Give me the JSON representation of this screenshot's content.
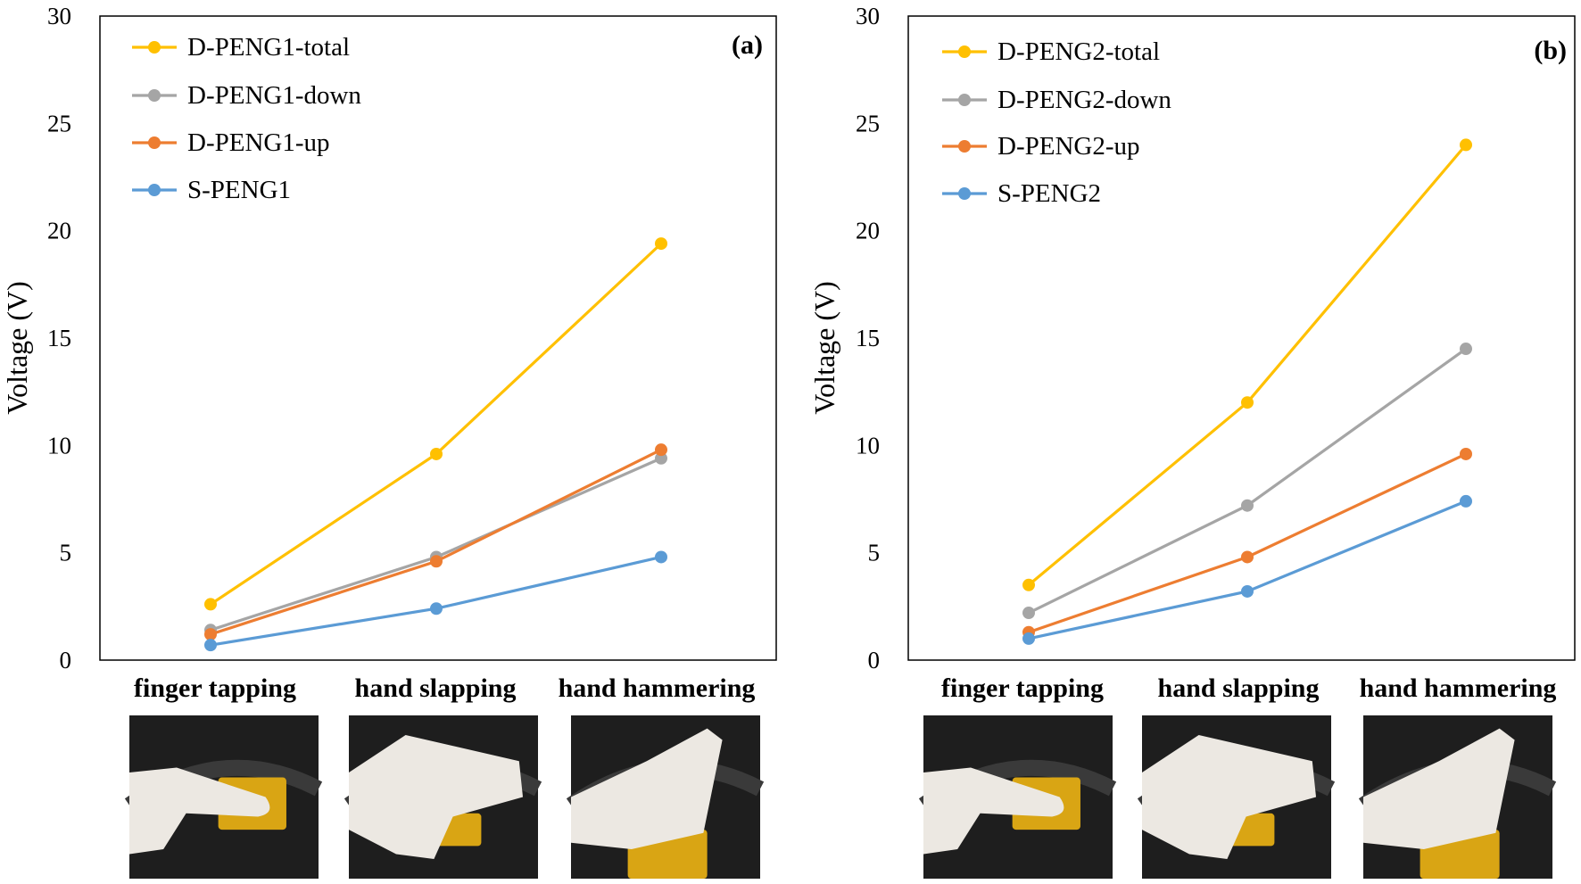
{
  "chart_data": [
    {
      "type": "line",
      "tag": "(a)",
      "categories": [
        "finger tapping",
        "hand slapping",
        "hand hammering"
      ],
      "ylabel": "Voltage (V)",
      "ylim": [
        0,
        30
      ],
      "yticks": [
        0,
        5,
        10,
        15,
        20,
        25,
        30
      ],
      "legend_position": "top-left",
      "grid": false,
      "series": [
        {
          "name": "D-PENG1-total",
          "color": "#FFC000",
          "values": [
            2.6,
            9.6,
            19.4
          ]
        },
        {
          "name": "D-PENG1-down",
          "color": "#A5A5A5",
          "values": [
            1.4,
            4.8,
            9.4
          ]
        },
        {
          "name": "D-PENG1-up",
          "color": "#ED7D31",
          "values": [
            1.2,
            4.6,
            9.8
          ]
        },
        {
          "name": "S-PENG1",
          "color": "#5B9BD5",
          "values": [
            0.7,
            2.4,
            4.8
          ]
        }
      ]
    },
    {
      "type": "line",
      "tag": "(b)",
      "categories": [
        "finger tapping",
        "hand slapping",
        "hand hammering"
      ],
      "ylabel": "Voltage (V)",
      "ylim": [
        0,
        30
      ],
      "yticks": [
        0,
        5,
        10,
        15,
        20,
        25,
        30
      ],
      "legend_position": "top-left",
      "grid": false,
      "series": [
        {
          "name": "D-PENG2-total",
          "color": "#FFC000",
          "values": [
            3.5,
            12.0,
            24.0
          ]
        },
        {
          "name": "D-PENG2-down",
          "color": "#A5A5A5",
          "values": [
            2.2,
            7.2,
            14.5
          ]
        },
        {
          "name": "D-PENG2-up",
          "color": "#ED7D31",
          "values": [
            1.3,
            4.8,
            9.6
          ]
        },
        {
          "name": "S-PENG2",
          "color": "#5B9BD5",
          "values": [
            1.0,
            3.2,
            7.4
          ]
        }
      ]
    }
  ],
  "photos": [
    "finger-tapping-photo",
    "hand-slapping-photo",
    "hand-hammering-photo"
  ]
}
